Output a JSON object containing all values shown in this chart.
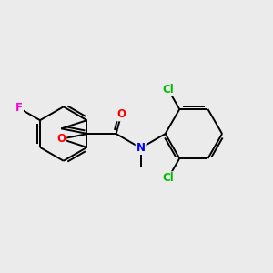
{
  "background_color": "#ebebeb",
  "bond_color": "#000000",
  "atom_colors": {
    "F": "#ff00dd",
    "O": "#ff0000",
    "N": "#0000ff",
    "Cl": "#00bb00"
  },
  "figsize": [
    3.0,
    3.0
  ],
  "dpi": 100
}
